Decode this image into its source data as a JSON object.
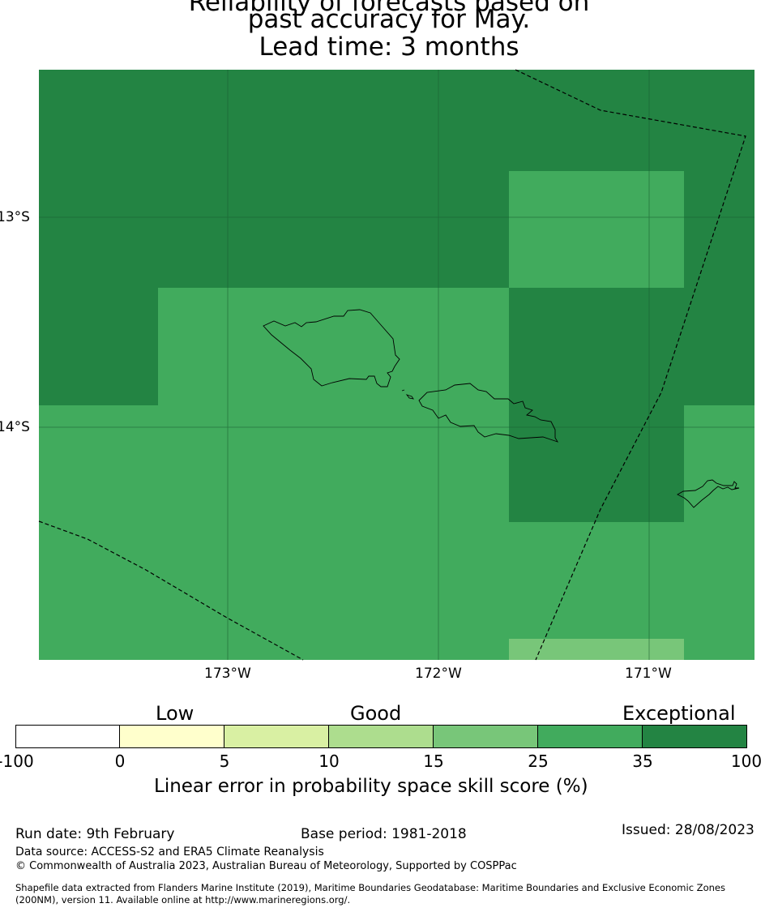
{
  "title": {
    "line1": "Reliability of forecasts based on",
    "line2": "past accuracy for May.",
    "line3": "Lead time: 3 months"
  },
  "map": {
    "lat_labels": [
      "13°S",
      "14°S"
    ],
    "lon_labels": [
      "173°W",
      "172°W",
      "171°W"
    ],
    "colors": {
      "exceptional": "#238443",
      "high": "#41ab5d",
      "good": "#78c679",
      "boundary": "#000000",
      "gridline": "#1a5e30"
    }
  },
  "colorbar": {
    "categories": [
      "Low",
      "Good",
      "Exceptional"
    ],
    "ticks": [
      "-100",
      "0",
      "5",
      "10",
      "15",
      "25",
      "35",
      "100"
    ],
    "colors": [
      "#ffffff",
      "#ffffcc",
      "#d9f0a3",
      "#addd8e",
      "#78c679",
      "#41ab5d",
      "#238443"
    ],
    "label": "Linear error in probability space skill score (%)"
  },
  "footer": {
    "run_date": "Run date: 9th February",
    "base_period": "Base period: 1981-2018",
    "issued": "Issued: 28/08/2023",
    "data_source": "Data source: ACCESS-S2 and ERA5 Climate Reanalysis",
    "copyright": "© Commonwealth of Australia 2023, Australian Bureau of Meteorology, Supported by COSPPac",
    "shapefile_line1": "Shapefile data extracted from Flanders Marine Institute (2019), Maritime Boundaries Geodatabase: Maritime Boundaries and Exclusive Economic Zones",
    "shapefile_line2": "(200NM), version 11. Available online at http://www.marineregions.org/."
  }
}
